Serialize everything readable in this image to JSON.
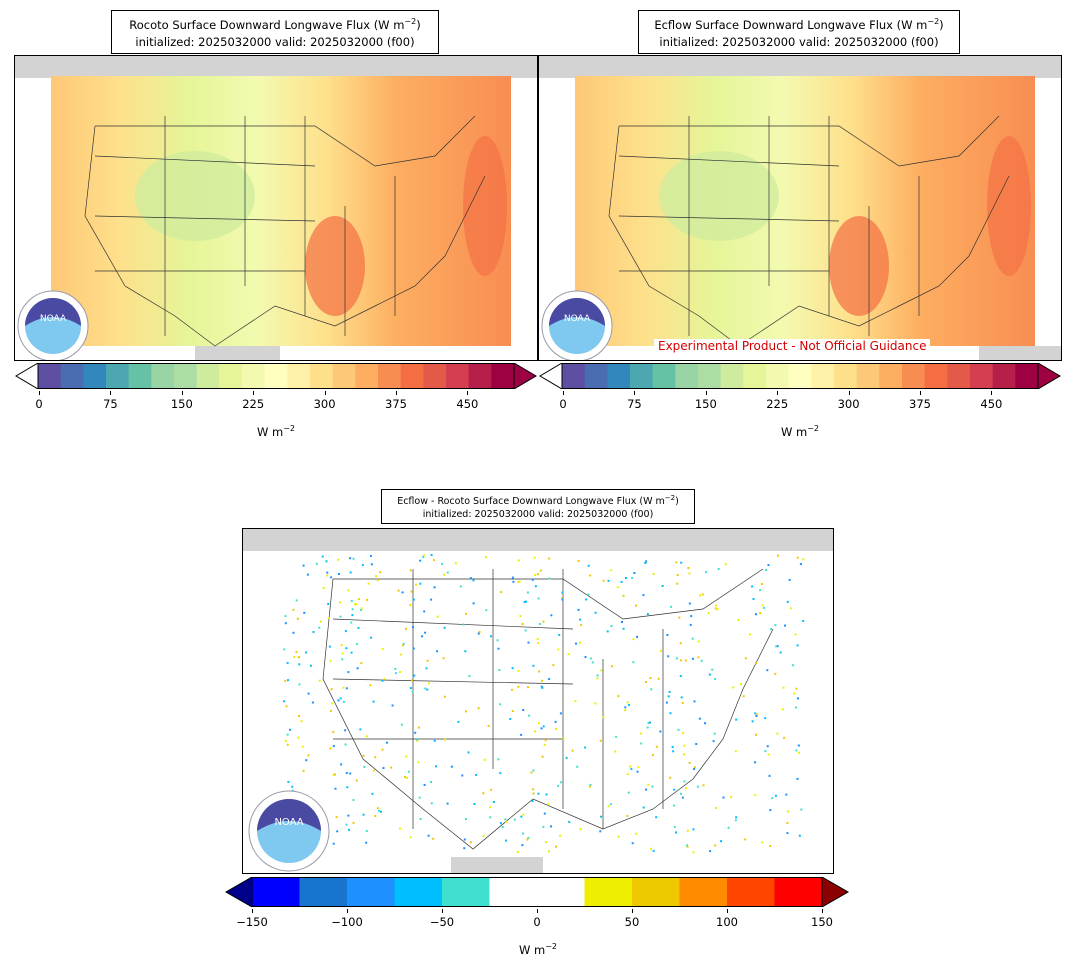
{
  "panels": [
    {
      "title_line1": "Rocoto Surface Downward Longwave Flux (W m$^{-2}$)",
      "title_line1_text": "Rocoto Surface Downward Longwave Flux (W m",
      "title_line2": "initialized: 2025032000 valid: 2025032000 (f00)"
    },
    {
      "title_line1_text": "Ecflow Surface Downward Longwave Flux (W m",
      "title_line2": "initialized: 2025032000 valid: 2025032000 (f00)"
    },
    {
      "title_line1_text": "Ecflow - Rocoto Surface Downward Longwave Flux (W m",
      "title_line2": "initialized: 2025032000 valid: 2025032000 (f00)"
    }
  ],
  "superscript": "−2",
  "title_close": ")",
  "unit_base": "W m",
  "disclaimer": "Experimental Product - Not Official Guidance",
  "logo_text": "NOAA",
  "flux_colorbar": {
    "ticks": [
      "0",
      "75",
      "150",
      "225",
      "300",
      "375",
      "450"
    ],
    "colors": [
      "#5e4fa2",
      "#4a6db2",
      "#3288bd",
      "#4da7b0",
      "#66c2a5",
      "#99d5a4",
      "#abdda4",
      "#cfec9e",
      "#e6f598",
      "#f3fab0",
      "#ffffbf",
      "#fff2a8",
      "#fee08b",
      "#fdc877",
      "#fdae61",
      "#f88d52",
      "#f46d43",
      "#e45a49",
      "#d53e4f",
      "#b61f4a",
      "#9e0142"
    ],
    "under": "#ffffff",
    "over": "#9e0142"
  },
  "diff_colorbar": {
    "ticks": [
      "−150",
      "−100",
      "−50",
      "0",
      "50",
      "100",
      "150"
    ],
    "colors": [
      "#0000ff",
      "#1874cd",
      "#1e90ff",
      "#00bfff",
      "#40e0d0",
      "#ffffff",
      "#ffffff",
      "#eeee00",
      "#eec900",
      "#ff8c00",
      "#ff4500",
      "#ff0000"
    ],
    "under": "#00008b",
    "over": "#8b0000"
  }
}
